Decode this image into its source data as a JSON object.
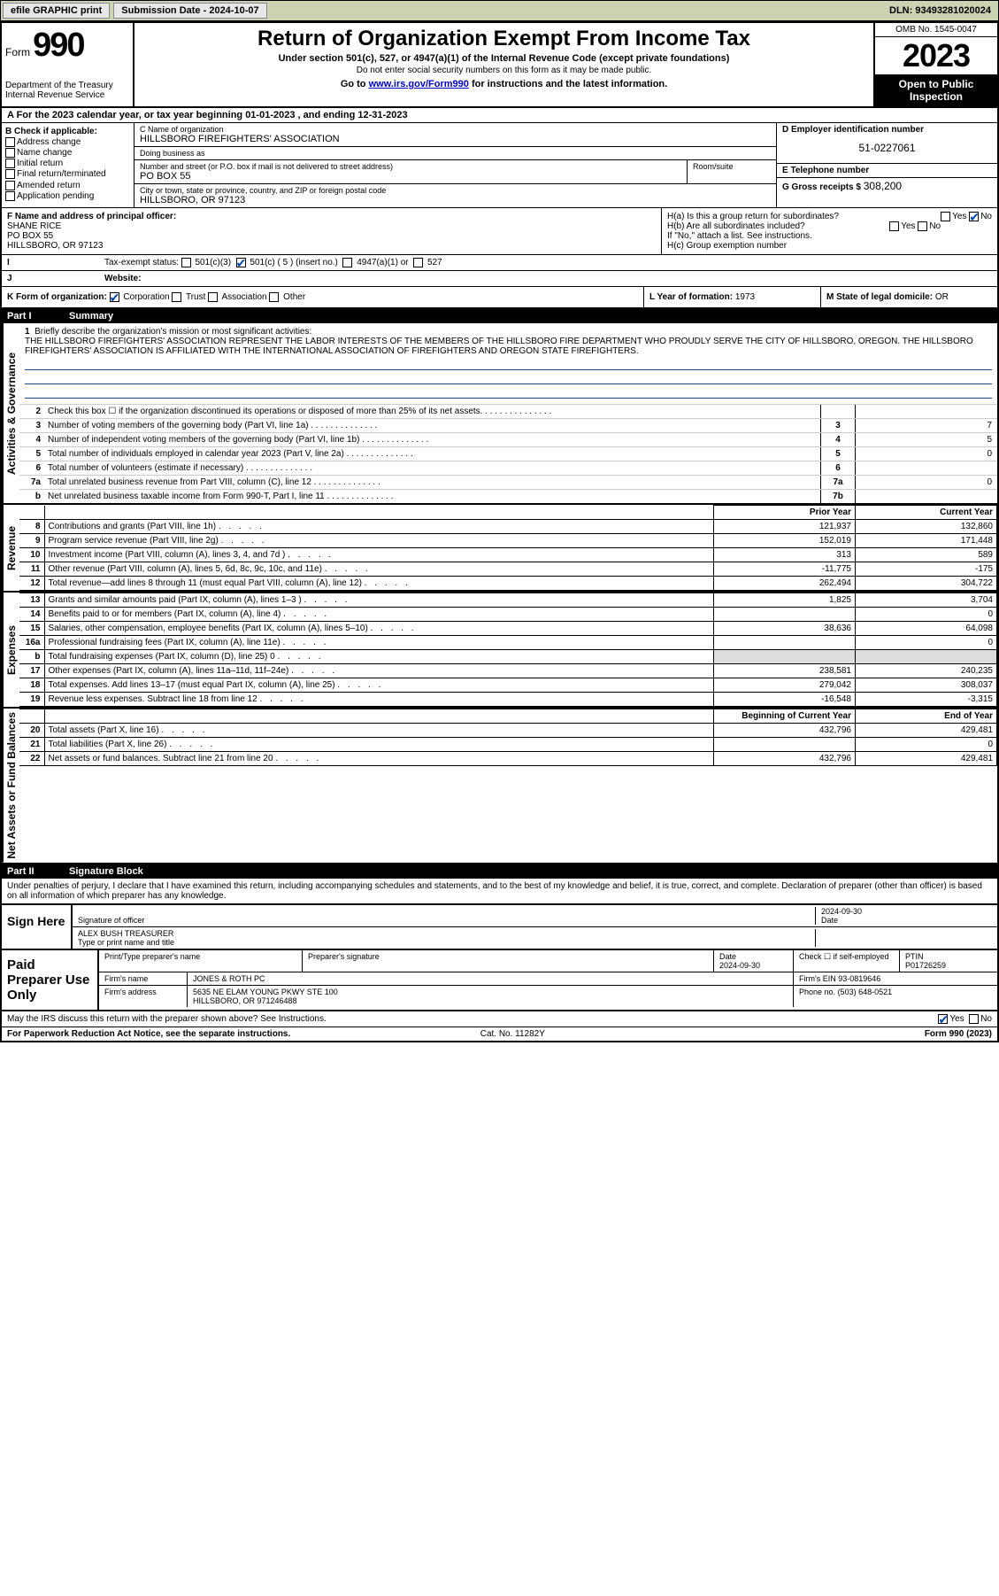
{
  "topbar": {
    "efile": "efile GRAPHIC print",
    "submission_label": "Submission Date - ",
    "submission_date": "2024-10-07",
    "dln_label": "DLN: ",
    "dln": "93493281020024"
  },
  "header": {
    "form_word": "Form",
    "form_num": "990",
    "dept": "Department of the Treasury\nInternal Revenue Service",
    "title": "Return of Organization Exempt From Income Tax",
    "sub": "Under section 501(c), 527, or 4947(a)(1) of the Internal Revenue Code (except private foundations)",
    "sub2": "Do not enter social security numbers on this form as it may be made public.",
    "goto_pre": "Go to ",
    "goto_link": "www.irs.gov/Form990",
    "goto_post": " for instructions and the latest information.",
    "omb": "OMB No. 1545-0047",
    "year": "2023",
    "open": "Open to Public Inspection"
  },
  "line_a": "A For the 2023 calendar year, or tax year beginning 01-01-2023   , and ending 12-31-2023",
  "col_b": {
    "title": "B Check if applicable:",
    "items": [
      "Address change",
      "Name change",
      "Initial return",
      "Final return/terminated",
      "Amended return",
      "Application pending"
    ]
  },
  "col_c": {
    "name_lbl": "C Name of organization",
    "name": "HILLSBORO FIREFIGHTERS' ASSOCIATION",
    "dba_lbl": "Doing business as",
    "dba": "",
    "street_lbl": "Number and street (or P.O. box if mail is not delivered to street address)",
    "street": "PO BOX 55",
    "room_lbl": "Room/suite",
    "city_lbl": "City or town, state or province, country, and ZIP or foreign postal code",
    "city": "HILLSBORO, OR  97123"
  },
  "col_d": {
    "ein_lbl": "D Employer identification number",
    "ein": "51-0227061",
    "tel_lbl": "E Telephone number",
    "tel": "",
    "gross_lbl": "G Gross receipts $ ",
    "gross": "308,200"
  },
  "f": {
    "lbl": "F Name and address of principal officer:",
    "name": "SHANE RICE",
    "addr1": "PO BOX 55",
    "addr2": "HILLSBORO, OR  97123"
  },
  "h": {
    "a": "H(a)  Is this a group return for subordinates?",
    "b": "H(b)  Are all subordinates included?",
    "b2": "If \"No,\" attach a list. See instructions.",
    "c": "H(c)  Group exemption number"
  },
  "i": {
    "lbl": "Tax-exempt status:",
    "o501c3": "501(c)(3)",
    "o501c": "501(c) ( 5 ) (insert no.)",
    "o4947": "4947(a)(1) or",
    "o527": "527"
  },
  "j": {
    "lbl": "Website:",
    "val": ""
  },
  "k": {
    "lbl": "K Form of organization:",
    "corp": "Corporation",
    "trust": "Trust",
    "assoc": "Association",
    "other": "Other"
  },
  "l": {
    "lbl": "L Year of formation: ",
    "val": "1973"
  },
  "m": {
    "lbl": "M State of legal domicile: ",
    "val": "OR"
  },
  "part1": {
    "num": "Part I",
    "title": "Summary"
  },
  "mission": {
    "n": "1",
    "lbl": "Briefly describe the organization's mission or most significant activities:",
    "text": "THE HILLSBORO FIREFIGHTERS' ASSOCIATION REPRESENT THE LABOR INTERESTS OF THE MEMBERS OF THE HILLSBORO FIRE DEPARTMENT WHO PROUDLY SERVE THE CITY OF HILLSBORO, OREGON. THE HILLSBORO FIREFIGHTERS' ASSOCIATION IS AFFILIATED WITH THE INTERNATIONAL ASSOCIATION OF FIREFIGHTERS AND OREGON STATE FIREFIGHTERS."
  },
  "gov_rows": [
    {
      "n": "2",
      "t": "Check this box ☐ if the organization discontinued its operations or disposed of more than 25% of its net assets.",
      "box": "",
      "v": ""
    },
    {
      "n": "3",
      "t": "Number of voting members of the governing body (Part VI, line 1a)",
      "box": "3",
      "v": "7"
    },
    {
      "n": "4",
      "t": "Number of independent voting members of the governing body (Part VI, line 1b)",
      "box": "4",
      "v": "5"
    },
    {
      "n": "5",
      "t": "Total number of individuals employed in calendar year 2023 (Part V, line 2a)",
      "box": "5",
      "v": "0"
    },
    {
      "n": "6",
      "t": "Total number of volunteers (estimate if necessary)",
      "box": "6",
      "v": ""
    },
    {
      "n": "7a",
      "t": "Total unrelated business revenue from Part VIII, column (C), line 12",
      "box": "7a",
      "v": "0"
    },
    {
      "n": "b",
      "t": "Net unrelated business taxable income from Form 990-T, Part I, line 11",
      "box": "7b",
      "v": ""
    }
  ],
  "fin_header": {
    "py": "Prior Year",
    "cy": "Current Year"
  },
  "rev_rows": [
    {
      "n": "8",
      "t": "Contributions and grants (Part VIII, line 1h)",
      "py": "121,937",
      "cy": "132,860"
    },
    {
      "n": "9",
      "t": "Program service revenue (Part VIII, line 2g)",
      "py": "152,019",
      "cy": "171,448"
    },
    {
      "n": "10",
      "t": "Investment income (Part VIII, column (A), lines 3, 4, and 7d )",
      "py": "313",
      "cy": "589"
    },
    {
      "n": "11",
      "t": "Other revenue (Part VIII, column (A), lines 5, 6d, 8c, 9c, 10c, and 11e)",
      "py": "-11,775",
      "cy": "-175"
    },
    {
      "n": "12",
      "t": "Total revenue—add lines 8 through 11 (must equal Part VIII, column (A), line 12)",
      "py": "262,494",
      "cy": "304,722"
    }
  ],
  "exp_rows": [
    {
      "n": "13",
      "t": "Grants and similar amounts paid (Part IX, column (A), lines 1–3 )",
      "py": "1,825",
      "cy": "3,704"
    },
    {
      "n": "14",
      "t": "Benefits paid to or for members (Part IX, column (A), line 4)",
      "py": "",
      "cy": "0"
    },
    {
      "n": "15",
      "t": "Salaries, other compensation, employee benefits (Part IX, column (A), lines 5–10)",
      "py": "38,636",
      "cy": "64,098"
    },
    {
      "n": "16a",
      "t": "Professional fundraising fees (Part IX, column (A), line 11e)",
      "py": "",
      "cy": "0"
    },
    {
      "n": "b",
      "t": "Total fundraising expenses (Part IX, column (D), line 25) 0",
      "py": "—shade—",
      "cy": "—shade—"
    },
    {
      "n": "17",
      "t": "Other expenses (Part IX, column (A), lines 11a–11d, 11f–24e)",
      "py": "238,581",
      "cy": "240,235"
    },
    {
      "n": "18",
      "t": "Total expenses. Add lines 13–17 (must equal Part IX, column (A), line 25)",
      "py": "279,042",
      "cy": "308,037"
    },
    {
      "n": "19",
      "t": "Revenue less expenses. Subtract line 18 from line 12",
      "py": "-16,548",
      "cy": "-3,315"
    }
  ],
  "na_header": {
    "py": "Beginning of Current Year",
    "cy": "End of Year"
  },
  "na_rows": [
    {
      "n": "20",
      "t": "Total assets (Part X, line 16)",
      "py": "432,796",
      "cy": "429,481"
    },
    {
      "n": "21",
      "t": "Total liabilities (Part X, line 26)",
      "py": "",
      "cy": "0"
    },
    {
      "n": "22",
      "t": "Net assets or fund balances. Subtract line 21 from line 20",
      "py": "432,796",
      "cy": "429,481"
    }
  ],
  "part2": {
    "num": "Part II",
    "title": "Signature Block"
  },
  "perjury": "Under penalties of perjury, I declare that I have examined this return, including accompanying schedules and statements, and to the best of my knowledge and belief, it is true, correct, and complete. Declaration of preparer (other than officer) is based on all information of which preparer has any knowledge.",
  "sign": {
    "left": "Sign Here",
    "sig_officer_lbl": "Signature of officer",
    "date_lbl": "Date",
    "date": "2024-09-30",
    "name": "ALEX BUSH  TREASURER",
    "name_lbl": "Type or print name and title"
  },
  "prep": {
    "left": "Paid Preparer Use Only",
    "col1": "Print/Type preparer's name",
    "col2": "Preparer's signature",
    "col3_lbl": "Date",
    "col3": "2024-09-30",
    "col4": "Check ☐ if self-employed",
    "col5_lbl": "PTIN",
    "col5": "P01726259",
    "firm_lbl": "Firm's name",
    "firm": "JONES & ROTH PC",
    "ein_lbl": "Firm's EIN",
    "ein": "93-0819646",
    "addr_lbl": "Firm's address",
    "addr1": "5635 NE ELAM YOUNG PKWY STE 100",
    "addr2": "HILLSBORO, OR  971246488",
    "phone_lbl": "Phone no.",
    "phone": "(503) 648-0521"
  },
  "discuss": "May the IRS discuss this return with the preparer shown above? See Instructions.",
  "footer": {
    "pra": "For Paperwork Reduction Act Notice, see the separate instructions.",
    "cat": "Cat. No. 11282Y",
    "form": "Form 990 (2023)"
  },
  "side_labels": {
    "gov": "Activities & Governance",
    "rev": "Revenue",
    "exp": "Expenses",
    "na": "Net Assets or Fund Balances"
  },
  "colors": {
    "topbar_bg": "#cbd3b2",
    "link": "#0000cc",
    "check": "#0047ab",
    "underline": "#1a4b8c"
  }
}
